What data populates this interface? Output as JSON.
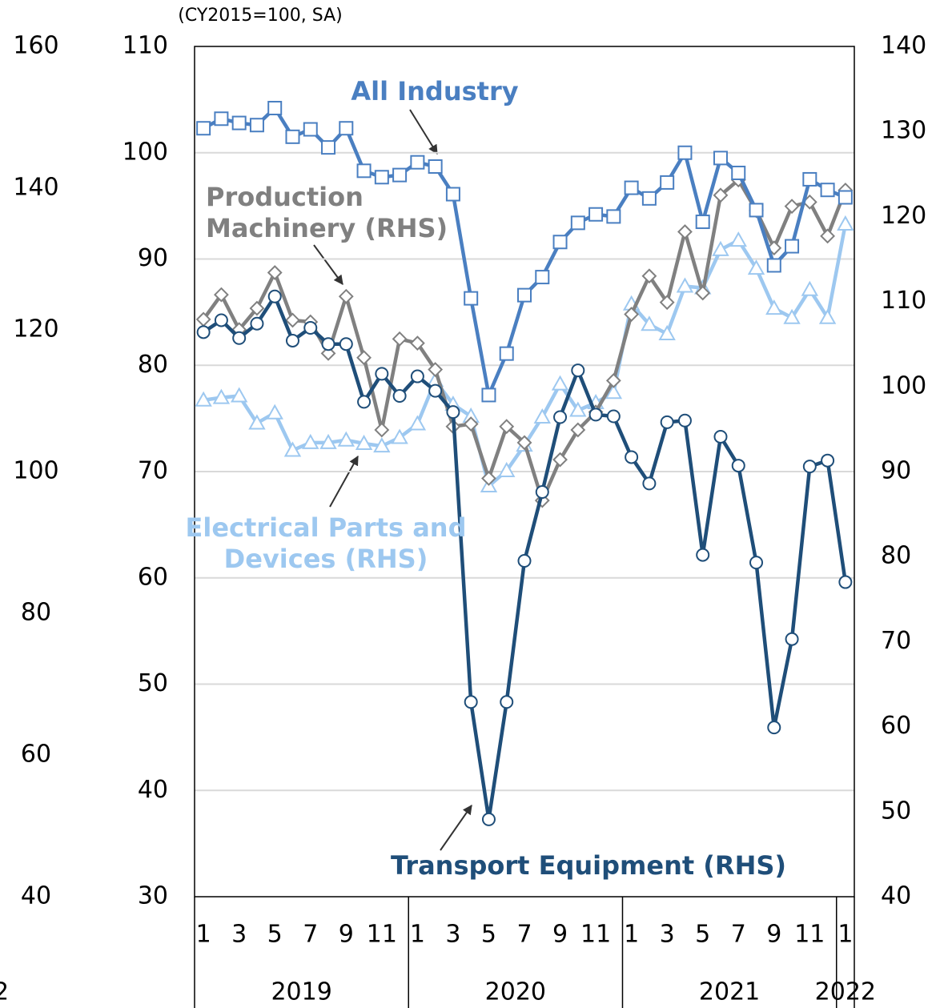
{
  "chart_data": {
    "type": "line",
    "unit_note": "(CY2015=100, SA)",
    "categories": [
      "1",
      null,
      "3",
      null,
      "5",
      null,
      "7",
      null,
      "9",
      null,
      "11",
      null,
      "1",
      null,
      "3",
      null,
      "5",
      null,
      "7",
      null,
      "9",
      null,
      "11",
      null,
      "1",
      null,
      "3",
      null,
      "5",
      null,
      "7",
      null,
      "9",
      null,
      "11",
      null,
      "1"
    ],
    "groups": [
      {
        "label": "2019",
        "count": 12
      },
      {
        "label": "2020",
        "count": 12
      },
      {
        "label": "2021",
        "count": 12
      },
      {
        "label": "2022",
        "count": 1
      }
    ],
    "clipped_label": "2",
    "ylim": [
      30,
      110
    ],
    "yticks": [
      30,
      40,
      50,
      60,
      70,
      80,
      90,
      100,
      110
    ],
    "y2lim": [
      40,
      140
    ],
    "y2ticks": [
      40,
      50,
      60,
      70,
      80,
      90,
      100,
      110,
      120,
      130,
      140
    ],
    "y3lim": [
      40,
      160
    ],
    "y3ticks": [
      40,
      60,
      80,
      100,
      120,
      140,
      160
    ],
    "grid": true,
    "series": [
      {
        "label": [
          "All Industry"
        ],
        "color": "#4a7fc1",
        "marker": "square",
        "axis": "y",
        "values": [
          102.3,
          103.2,
          102.8,
          102.6,
          104.2,
          101.5,
          102.2,
          100.5,
          102.3,
          98.3,
          97.7,
          97.9,
          99.1,
          98.7,
          96.1,
          86.3,
          77.2,
          81.1,
          86.6,
          88.3,
          91.6,
          93.4,
          94.2,
          94.0,
          96.7,
          95.7,
          97.2,
          100.0,
          93.5,
          99.5,
          98.1,
          94.6,
          89.4,
          91.2,
          97.5,
          96.5,
          95.8
        ]
      },
      {
        "label": [
          "Transport Equipment (RHS)"
        ],
        "color": "#1f4e79",
        "marker": "circle",
        "axis": "y2",
        "values": [
          106.4,
          107.8,
          105.7,
          107.4,
          110.6,
          105.4,
          106.9,
          105.0,
          105.0,
          98.2,
          101.5,
          98.9,
          101.2,
          99.5,
          97.0,
          62.9,
          49.1,
          62.9,
          79.5,
          87.6,
          96.4,
          101.9,
          96.7,
          96.5,
          91.7,
          88.6,
          95.8,
          96.0,
          80.2,
          94.1,
          90.7,
          79.3,
          59.9,
          70.3,
          90.6,
          91.3,
          77.0
        ]
      },
      {
        "label": [
          "Production",
          "Machinery (RHS)"
        ],
        "color": "#808080",
        "marker": "diamond",
        "axis": "y2",
        "values": [
          107.9,
          110.8,
          106.7,
          109.2,
          113.4,
          107.8,
          107.6,
          103.9,
          110.6,
          103.4,
          94.9,
          105.6,
          105.1,
          102.0,
          95.3,
          95.6,
          89.2,
          95.3,
          93.4,
          86.6,
          91.4,
          94.9,
          97.0,
          100.7,
          108.5,
          113.0,
          109.9,
          118.2,
          111.0,
          122.5,
          124.3,
          120.7,
          116.3,
          121.2,
          121.7,
          117.7,
          123.1
        ]
      },
      {
        "label": [
          "Electrical Parts and",
          "Devices (RHS)"
        ],
        "color": "#9dc8f0",
        "marker": "triangle",
        "axis": "y2",
        "values": [
          98.4,
          98.7,
          98.9,
          95.7,
          96.9,
          92.5,
          93.4,
          93.4,
          93.7,
          93.3,
          93.0,
          94.0,
          95.6,
          100.7,
          97.9,
          96.5,
          88.3,
          90.1,
          93.1,
          96.4,
          100.3,
          97.2,
          98.1,
          99.3,
          109.7,
          107.3,
          106.2,
          111.8,
          111.6,
          116.1,
          117.2,
          113.9,
          109.2,
          108.1,
          111.4,
          108.1,
          119.1
        ]
      }
    ]
  }
}
